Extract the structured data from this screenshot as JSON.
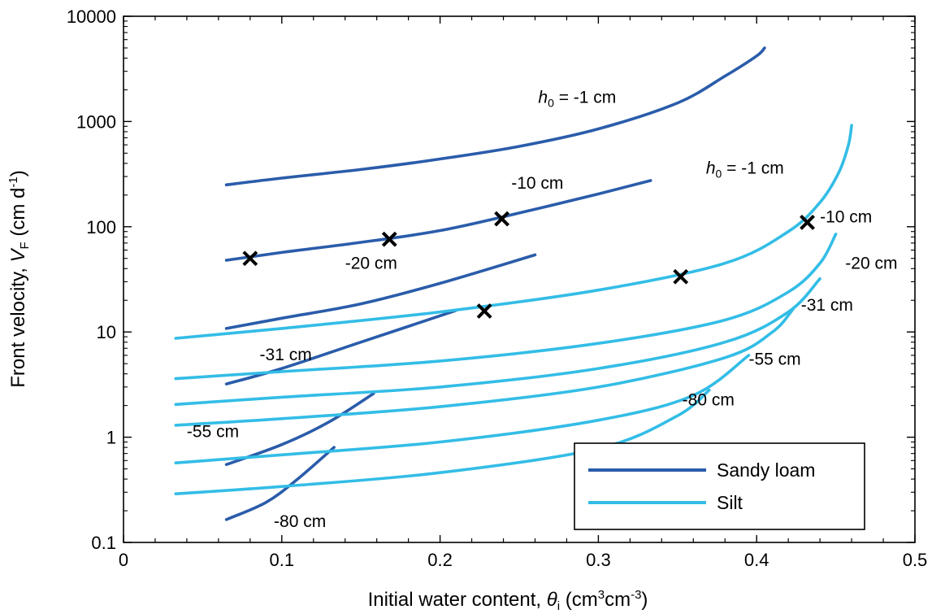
{
  "chart_data": {
    "type": "line",
    "xlabel": "Initial water content, θi (cm³cm⁻³)",
    "xlabel_parts": {
      "main": "Initial water content, ",
      "sym": "θ",
      "sub": "i",
      "unit_a": " (cm",
      "sup1": "3",
      "unit_b": "cm",
      "sup2": "-3",
      "unit_c": ")"
    },
    "ylabel": "Front velocity, VF (cm d⁻¹)",
    "ylabel_parts": {
      "main": "Front velocity, ",
      "sym": "V",
      "sub": "F",
      "unit_a": " (cm d",
      "sup": "-1",
      "unit_b": ")"
    },
    "xlim": [
      0,
      0.5
    ],
    "ylim": [
      0.1,
      10000
    ],
    "yscale": "log",
    "xticks": [
      0,
      0.1,
      0.2,
      0.3,
      0.4,
      0.5
    ],
    "xtick_labels": [
      "0",
      "0.1",
      "0.2",
      "0.3",
      "0.4",
      "0.5"
    ],
    "yticks": [
      0.1,
      1,
      10,
      100,
      1000,
      10000
    ],
    "ytick_labels": [
      "0.1",
      "1",
      "10",
      "100",
      "1000",
      "10000"
    ],
    "grid": false,
    "legend": {
      "placement": "bottom-right",
      "entries": [
        {
          "name": "Sandy loam",
          "color": "#2a5caa"
        },
        {
          "name": "Silt",
          "color": "#33bde6"
        }
      ]
    },
    "colors": {
      "sandy_loam": "#2a5caa",
      "silt": "#33bde6",
      "marker": "#000000"
    },
    "series": [
      {
        "soil": "Sandy loam",
        "h0": "-1 cm",
        "x": [
          0.065,
          0.1,
          0.15,
          0.2,
          0.25,
          0.3,
          0.35,
          0.38,
          0.4,
          0.405
        ],
        "y": [
          250,
          290,
          350,
          440,
          580,
          850,
          1500,
          2700,
          4200,
          5000
        ]
      },
      {
        "soil": "Sandy loam",
        "h0": "-10 cm",
        "x": [
          0.065,
          0.1,
          0.15,
          0.2,
          0.25,
          0.3,
          0.333
        ],
        "y": [
          48,
          57,
          71,
          92,
          135,
          205,
          275
        ]
      },
      {
        "soil": "Sandy loam",
        "h0": "-20 cm",
        "x": [
          0.065,
          0.1,
          0.15,
          0.2,
          0.26
        ],
        "y": [
          10.8,
          13.5,
          18.5,
          29,
          54
        ]
      },
      {
        "soil": "Sandy loam",
        "h0": "-31 cm",
        "x": [
          0.065,
          0.1,
          0.15,
          0.21
        ],
        "y": [
          3.2,
          4.5,
          8,
          16
        ]
      },
      {
        "soil": "Sandy loam",
        "h0": "-55 cm",
        "x": [
          0.065,
          0.1,
          0.13,
          0.158
        ],
        "y": [
          0.55,
          0.85,
          1.4,
          2.6
        ]
      },
      {
        "soil": "Sandy loam",
        "h0": "-80 cm",
        "x": [
          0.065,
          0.09,
          0.11,
          0.133
        ],
        "y": [
          0.165,
          0.24,
          0.4,
          0.8
        ]
      },
      {
        "soil": "Silt",
        "h0": "-1 cm",
        "x": [
          0.033,
          0.1,
          0.2,
          0.3,
          0.38,
          0.42,
          0.44,
          0.452,
          0.458,
          0.46
        ],
        "y": [
          8.7,
          10.8,
          15.5,
          25,
          45,
          90,
          170,
          330,
          600,
          920
        ]
      },
      {
        "soil": "Silt",
        "h0": "-10 cm",
        "x": [
          0.033,
          0.1,
          0.2,
          0.3,
          0.38,
          0.42,
          0.44,
          0.45
        ],
        "y": [
          3.6,
          4.2,
          5.3,
          7.8,
          13,
          24,
          45,
          85
        ]
      },
      {
        "soil": "Silt",
        "h0": "-20 cm",
        "x": [
          0.033,
          0.1,
          0.2,
          0.3,
          0.38,
          0.42,
          0.44
        ],
        "y": [
          2.05,
          2.4,
          3,
          4.5,
          8,
          15.5,
          32
        ]
      },
      {
        "soil": "Silt",
        "h0": "-31 cm",
        "x": [
          0.033,
          0.1,
          0.2,
          0.3,
          0.38,
          0.41,
          0.423
        ],
        "y": [
          1.3,
          1.5,
          1.95,
          3,
          5.7,
          10,
          16.5
        ]
      },
      {
        "soil": "Silt",
        "h0": "-55 cm",
        "x": [
          0.033,
          0.1,
          0.2,
          0.3,
          0.36,
          0.395
        ],
        "y": [
          0.57,
          0.68,
          0.9,
          1.45,
          2.5,
          6
        ]
      },
      {
        "soil": "Silt",
        "h0": "-80 cm",
        "x": [
          0.033,
          0.1,
          0.2,
          0.3,
          0.35,
          0.37
        ],
        "y": [
          0.29,
          0.34,
          0.46,
          0.78,
          1.6,
          2.8
        ]
      }
    ],
    "markers": {
      "x": [
        0.08,
        0.168,
        0.239,
        0.228,
        0.352,
        0.432
      ],
      "y": [
        50,
        76,
        119,
        15.8,
        33.5,
        110
      ]
    },
    "annotations": [
      {
        "sym": "h",
        "sub": "0",
        "text": " = -1 cm",
        "x": 0.262,
        "y": 1500
      },
      {
        "text": "-10 cm",
        "x": 0.245,
        "y": 230
      },
      {
        "text": "-20 cm",
        "x": 0.14,
        "y": 40
      },
      {
        "text": "-31 cm",
        "x": 0.086,
        "y": 5.4
      },
      {
        "text": "-55 cm",
        "x": 0.04,
        "y": 1.0
      },
      {
        "text": "-80 cm",
        "x": 0.095,
        "y": 0.14
      },
      {
        "sym": "h",
        "sub": "0",
        "text": " = -1 cm",
        "x": 0.368,
        "y": 320
      },
      {
        "text": "-10 cm",
        "x": 0.44,
        "y": 110
      },
      {
        "text": "-20 cm",
        "x": 0.456,
        "y": 40
      },
      {
        "text": "-31 cm",
        "x": 0.428,
        "y": 16
      },
      {
        "text": "-55 cm",
        "x": 0.395,
        "y": 4.9
      },
      {
        "text": "-80 cm",
        "x": 0.353,
        "y": 2.0
      }
    ]
  }
}
